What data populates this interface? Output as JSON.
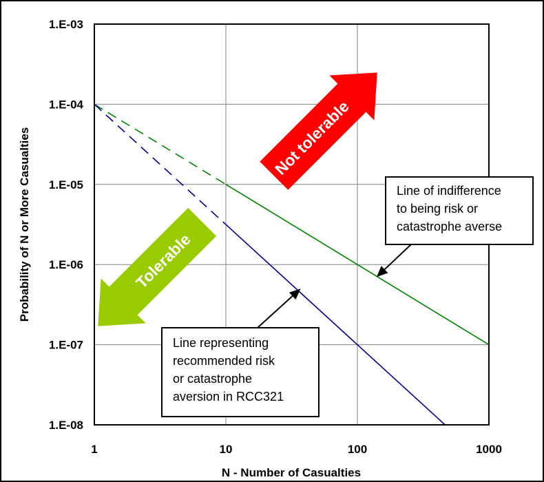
{
  "chart_data": {
    "type": "line",
    "title": "",
    "xlabel": "N - Number of Casualties",
    "ylabel": "Probability of N or More Casualties",
    "xscale": "log",
    "yscale": "log",
    "xlim": [
      1,
      1000
    ],
    "ylim": [
      1e-08,
      0.001
    ],
    "grid": true,
    "x_ticks": [
      {
        "value": 1,
        "label": "1"
      },
      {
        "value": 10,
        "label": "10"
      },
      {
        "value": 100,
        "label": "100"
      },
      {
        "value": 1000,
        "label": "1000"
      }
    ],
    "y_ticks": [
      {
        "value": 0.001,
        "label": "1.E-03"
      },
      {
        "value": 0.0001,
        "label": "1.E-04"
      },
      {
        "value": 1e-05,
        "label": "1.E-05"
      },
      {
        "value": 1e-06,
        "label": "1.E-06"
      },
      {
        "value": 1e-07,
        "label": "1.E-07"
      },
      {
        "value": 1e-08,
        "label": "1.E-08"
      }
    ],
    "series": [
      {
        "color": "#008000",
        "segments": [
          {
            "style": "dashed",
            "x": [
              1,
              10
            ],
            "y": [
              0.0001,
              1e-05
            ]
          },
          {
            "style": "solid",
            "x": [
              10,
              1000
            ],
            "y": [
              1e-05,
              1e-07
            ]
          }
        ]
      },
      {
        "color": "#00008B",
        "segments": [
          {
            "style": "dashed",
            "x": [
              1,
              10
            ],
            "y": [
              0.0001,
              3.16e-06
            ]
          },
          {
            "style": "solid",
            "x": [
              10,
              464
            ],
            "y": [
              3.16e-06,
              1e-08
            ]
          }
        ]
      }
    ],
    "annotations": {
      "indifference": {
        "lines": [
          "Line of indifference",
          "to being risk or",
          "catastrophe averse"
        ],
        "point": {
          "x": 140,
          "y": 7e-07
        }
      },
      "recommended": {
        "lines": [
          "Line representing",
          "recommended risk",
          "or catastrophe",
          "aversion in RCC321"
        ],
        "point": {
          "x": 37,
          "y": 5e-07
        }
      }
    },
    "region_arrows": [
      {
        "label": "Not tolerable",
        "color": "#ff0000"
      },
      {
        "label": "Tolerable",
        "color": "#99cc00"
      }
    ]
  }
}
